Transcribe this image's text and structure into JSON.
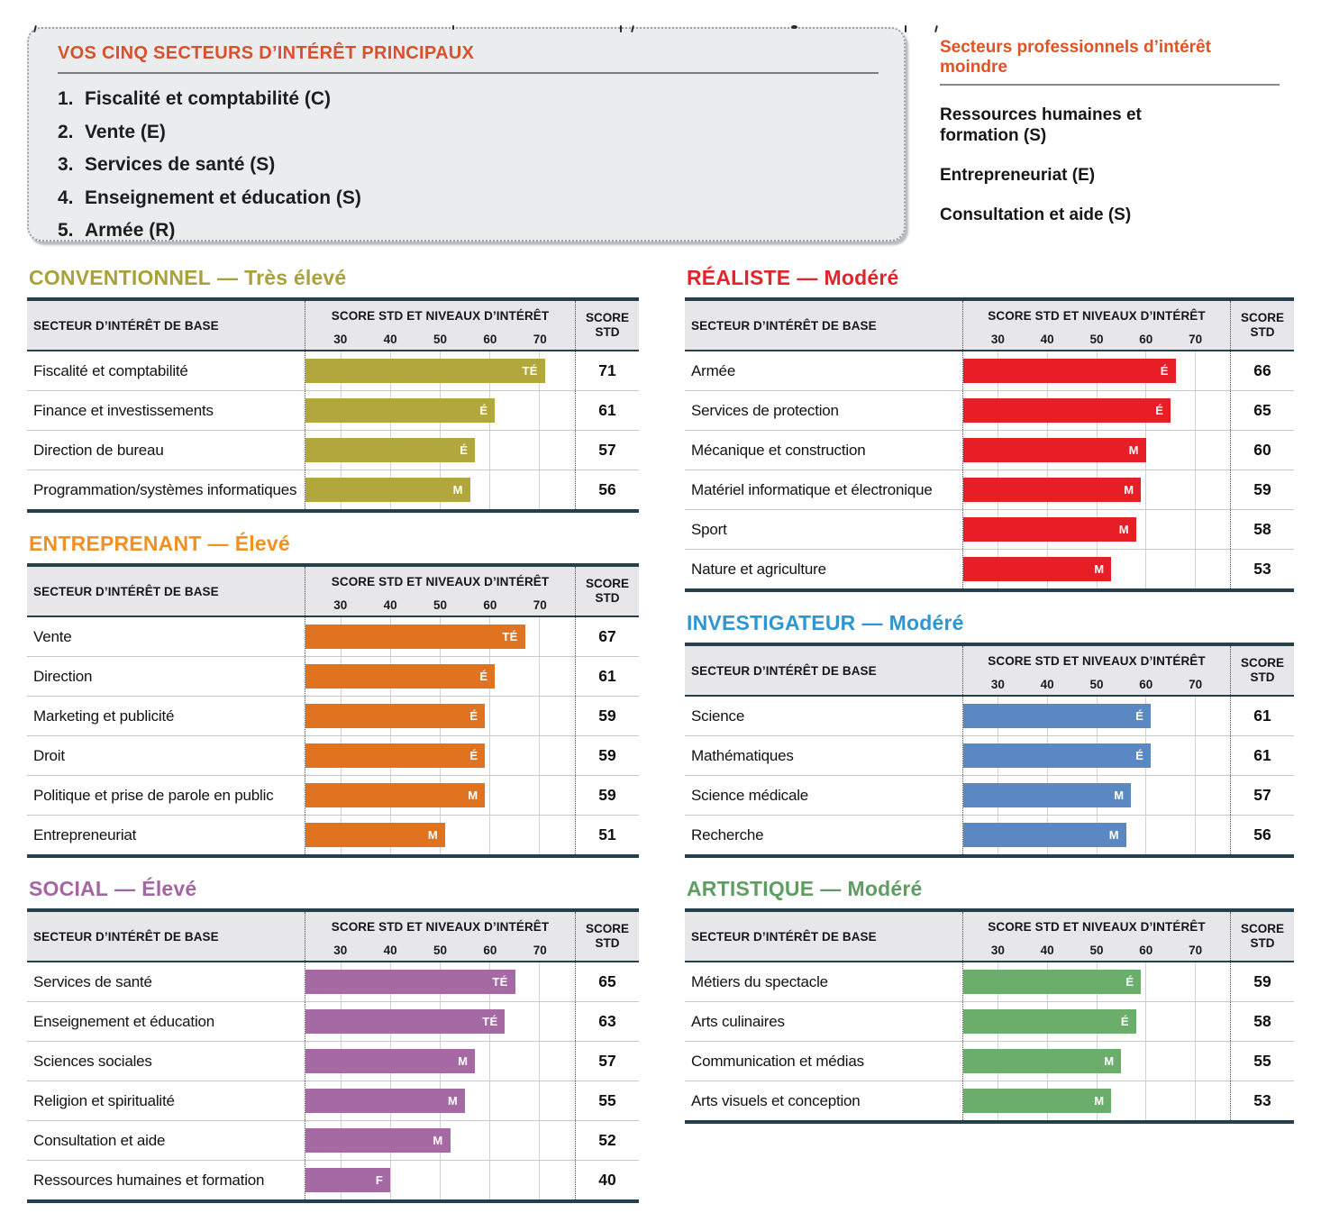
{
  "strings": {
    "dash": "—"
  },
  "top_box": {
    "title": "VOS CINQ SECTEURS D’INTÉRÊT PRINCIPAUX",
    "items": [
      {
        "num": "1.",
        "label": "Fiscalité et comptabilité (C)"
      },
      {
        "num": "2.",
        "label": "Vente (E)"
      },
      {
        "num": "3.",
        "label": "Services de santé (S)"
      },
      {
        "num": "4.",
        "label": "Enseignement et éducation (S)"
      },
      {
        "num": "5.",
        "label": "Armée (R)"
      }
    ]
  },
  "lesser": {
    "title": "Secteurs professionnels d’intérêt moindre",
    "items": [
      "Ressources humaines et formation (S)",
      "Entrepreneuriat (E)",
      "Consultation et aide (S)"
    ]
  },
  "table_header": {
    "sector_col": "SECTEUR D’INTÉRÊT DE BASE",
    "chart_col": "SCORE STD ET NIVEAUX D’INTÉRÊT",
    "score_line1": "SCORE",
    "score_line2": "STD"
  },
  "axis": {
    "min": 23,
    "max": 77,
    "ticks": [
      30,
      40,
      50,
      60,
      70
    ]
  },
  "chart_data": [
    {
      "type": "bar",
      "column": "left",
      "title": "CONVENTIONNEL",
      "level_label": "Très élevé",
      "title_color": "#a8a23e",
      "bar_color": "#b2a73c",
      "xlim": [
        23,
        77
      ],
      "categories": [
        "Fiscalité et comptabilité",
        "Finance et investissements",
        "Direction de bureau",
        "Programmation/systèmes informatiques"
      ],
      "values": [
        71,
        61,
        57,
        56
      ],
      "interest_levels": [
        "TÉ",
        "É",
        "É",
        "M"
      ]
    },
    {
      "type": "bar",
      "column": "left",
      "title": "ENTREPRENANT",
      "level_label": "Élevé",
      "title_color": "#ef9125",
      "bar_color": "#e0731f",
      "xlim": [
        23,
        77
      ],
      "categories": [
        "Vente",
        "Direction",
        "Marketing et publicité",
        "Droit",
        "Politique et prise de parole en public",
        "Entrepreneuriat"
      ],
      "values": [
        67,
        61,
        59,
        59,
        59,
        51
      ],
      "interest_levels": [
        "TÉ",
        "É",
        "É",
        "É",
        "M",
        "M"
      ]
    },
    {
      "type": "bar",
      "column": "left",
      "title": "SOCIAL",
      "level_label": "Élevé",
      "title_color": "#a466a2",
      "bar_color": "#a569a3",
      "xlim": [
        23,
        77
      ],
      "categories": [
        "Services de santé",
        "Enseignement et éducation",
        "Sciences sociales",
        "Religion et spiritualité",
        "Consultation et aide",
        "Ressources humaines et formation"
      ],
      "values": [
        65,
        63,
        57,
        55,
        52,
        40
      ],
      "interest_levels": [
        "TÉ",
        "TÉ",
        "M",
        "M",
        "M",
        "F"
      ]
    },
    {
      "type": "bar",
      "column": "right",
      "title": "RÉALISTE",
      "level_label": "Modéré",
      "title_color": "#e2252b",
      "bar_color": "#e71e26",
      "xlim": [
        23,
        77
      ],
      "categories": [
        "Armée",
        "Services de protection",
        "Mécanique et construction",
        "Matériel informatique et électronique",
        "Sport",
        "Nature et agriculture"
      ],
      "values": [
        66,
        65,
        60,
        59,
        58,
        53
      ],
      "interest_levels": [
        "É",
        "É",
        "M",
        "M",
        "M",
        "M"
      ]
    },
    {
      "type": "bar",
      "column": "right",
      "title": "INVESTIGATEUR",
      "level_label": "Modéré",
      "title_color": "#2e96d1",
      "bar_color": "#5b88c3",
      "xlim": [
        23,
        77
      ],
      "categories": [
        "Science",
        "Mathématiques",
        "Science médicale",
        "Recherche"
      ],
      "values": [
        61,
        61,
        57,
        56
      ],
      "interest_levels": [
        "É",
        "É",
        "M",
        "M"
      ]
    },
    {
      "type": "bar",
      "column": "right",
      "title": "ARTISTIQUE",
      "level_label": "Modéré",
      "title_color": "#5f9e62",
      "bar_color": "#6bae6c",
      "xlim": [
        23,
        77
      ],
      "categories": [
        "Métiers du spectacle",
        "Arts culinaires",
        "Communication et médias",
        "Arts visuels et conception"
      ],
      "values": [
        59,
        58,
        55,
        53
      ],
      "interest_levels": [
        "É",
        "É",
        "M",
        "M"
      ]
    }
  ]
}
